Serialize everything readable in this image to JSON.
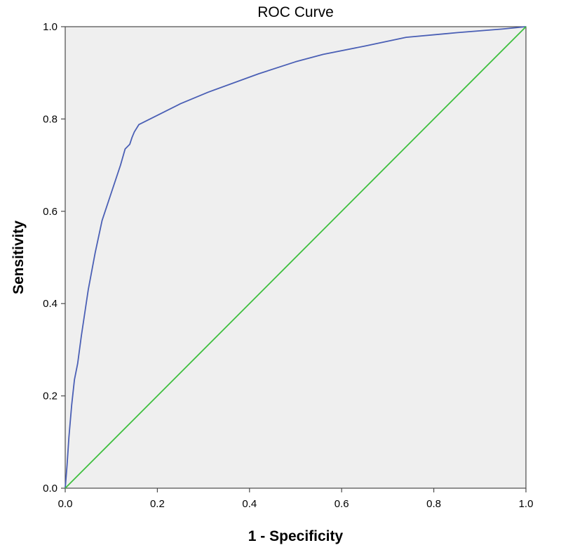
{
  "chart_data": {
    "type": "line",
    "title": "ROC Curve",
    "xlabel": "1 - Specificity",
    "ylabel": "Sensitivity",
    "xlim": [
      0.0,
      1.0
    ],
    "ylim": [
      0.0,
      1.0
    ],
    "x_ticks": [
      "0.0",
      "0.2",
      "0.4",
      "0.6",
      "0.8",
      "1.0"
    ],
    "y_ticks": [
      "0.0",
      "0.2",
      "0.4",
      "0.6",
      "0.8",
      "1.0"
    ],
    "grid": false,
    "legend": "none",
    "series": [
      {
        "color": "#4a5fb5",
        "points": [
          [
            0.0,
            0.0
          ],
          [
            0.004,
            0.05
          ],
          [
            0.008,
            0.11
          ],
          [
            0.014,
            0.18
          ],
          [
            0.02,
            0.235
          ],
          [
            0.027,
            0.27
          ],
          [
            0.035,
            0.33
          ],
          [
            0.05,
            0.43
          ],
          [
            0.065,
            0.51
          ],
          [
            0.08,
            0.58
          ],
          [
            0.1,
            0.64
          ],
          [
            0.12,
            0.7
          ],
          [
            0.13,
            0.735
          ],
          [
            0.14,
            0.745
          ],
          [
            0.145,
            0.76
          ],
          [
            0.15,
            0.772
          ],
          [
            0.16,
            0.788
          ],
          [
            0.2,
            0.808
          ],
          [
            0.25,
            0.833
          ],
          [
            0.31,
            0.858
          ],
          [
            0.42,
            0.898
          ],
          [
            0.5,
            0.924
          ],
          [
            0.56,
            0.94
          ],
          [
            0.65,
            0.958
          ],
          [
            0.74,
            0.977
          ],
          [
            0.85,
            0.987
          ],
          [
            0.95,
            0.995
          ],
          [
            1.0,
            1.0
          ]
        ]
      },
      {
        "color": "#3dbf3d",
        "points": [
          [
            0.0,
            0.0
          ],
          [
            1.0,
            1.0
          ]
        ]
      }
    ]
  }
}
